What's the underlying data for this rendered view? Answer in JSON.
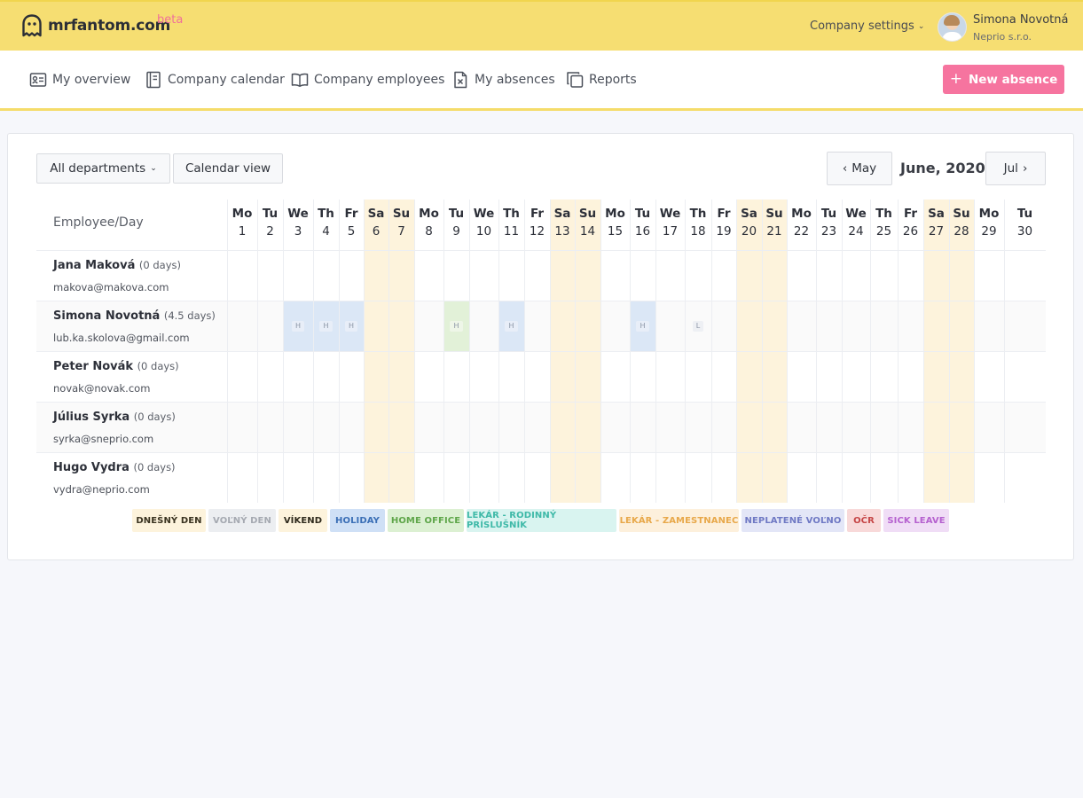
{
  "header": {
    "logo_text": "mrfantom.com",
    "beta_label": "beta",
    "company_settings_label": "Company settings",
    "user_name": "Simona Novotná",
    "user_company": "Neprio s.r.o."
  },
  "nav": {
    "items": [
      {
        "label": "My overview",
        "icon": "id-card-icon"
      },
      {
        "label": "Company calendar",
        "icon": "calendar-book-icon"
      },
      {
        "label": "Company employees",
        "icon": "open-book-icon"
      },
      {
        "label": "My absences",
        "icon": "document-x-icon"
      },
      {
        "label": "Reports",
        "icon": "copy-icon"
      }
    ],
    "new_absence_label": "New absence"
  },
  "toolbar": {
    "department_filter": "All departments",
    "view_button": "Calendar view",
    "prev_month": "May",
    "current_month": "June, 2020",
    "next_month": "Jul"
  },
  "calendar": {
    "header_label": "Employee/Day",
    "days": [
      {
        "n": "Mo",
        "d": "1"
      },
      {
        "n": "Tu",
        "d": "2"
      },
      {
        "n": "We",
        "d": "3"
      },
      {
        "n": "Th",
        "d": "4"
      },
      {
        "n": "Fr",
        "d": "5"
      },
      {
        "n": "Sa",
        "d": "6"
      },
      {
        "n": "Su",
        "d": "7"
      },
      {
        "n": "Mo",
        "d": "8"
      },
      {
        "n": "Tu",
        "d": "9"
      },
      {
        "n": "We",
        "d": "10"
      },
      {
        "n": "Th",
        "d": "11"
      },
      {
        "n": "Fr",
        "d": "12"
      },
      {
        "n": "Sa",
        "d": "13"
      },
      {
        "n": "Su",
        "d": "14"
      },
      {
        "n": "Mo",
        "d": "15"
      },
      {
        "n": "Tu",
        "d": "16"
      },
      {
        "n": "We",
        "d": "17"
      },
      {
        "n": "Th",
        "d": "18"
      },
      {
        "n": "Fr",
        "d": "19"
      },
      {
        "n": "Sa",
        "d": "20"
      },
      {
        "n": "Su",
        "d": "21"
      },
      {
        "n": "Mo",
        "d": "22"
      },
      {
        "n": "Tu",
        "d": "23"
      },
      {
        "n": "We",
        "d": "24"
      },
      {
        "n": "Th",
        "d": "25"
      },
      {
        "n": "Fr",
        "d": "26"
      },
      {
        "n": "Sa",
        "d": "27"
      },
      {
        "n": "Su",
        "d": "28"
      },
      {
        "n": "Mo",
        "d": "29"
      },
      {
        "n": "Tu",
        "d": "30"
      }
    ],
    "employees": [
      {
        "name": "Jana Maková",
        "days": "(0 days)",
        "email": "makova@makova.com",
        "absences": []
      },
      {
        "name": "Simona Novotná",
        "days": "(4.5 days)",
        "email": "lub.ka.skolova@gmail.com",
        "absences": [
          {
            "day": 3,
            "type": "holiday",
            "tag": "H"
          },
          {
            "day": 4,
            "type": "holiday",
            "tag": "H"
          },
          {
            "day": 5,
            "type": "holiday",
            "tag": "H"
          },
          {
            "day": 9,
            "type": "home-office",
            "tag": "H"
          },
          {
            "day": 11,
            "type": "holiday",
            "tag": "H"
          },
          {
            "day": 16,
            "type": "holiday",
            "tag": "H"
          },
          {
            "day": 18,
            "type": "none",
            "tag": "L"
          }
        ]
      },
      {
        "name": "Peter Novák",
        "days": "(0 days)",
        "email": "novak@novak.com",
        "absences": []
      },
      {
        "name": "Július Syrka",
        "days": "(0 days)",
        "email": "syrka@sneprio.com",
        "absences": []
      },
      {
        "name": "Hugo Vydra",
        "days": "(0 days)",
        "email": "vydra@neprio.com",
        "absences": []
      }
    ]
  },
  "legend": [
    {
      "label": "DNEŠNÝ DEN",
      "bg": "#fdf3dc",
      "fg": "#3a3320"
    },
    {
      "label": "VOĽNÝ DEN",
      "bg": "#eceef1",
      "fg": "#a5a9b1"
    },
    {
      "label": "VÍKEND",
      "bg": "#fdf3dc",
      "fg": "#2f2a1c"
    },
    {
      "label": "HOLIDAY",
      "bg": "#cfe0f6",
      "fg": "#3b6fb6"
    },
    {
      "label": "HOME OFFICE",
      "bg": "#dcf0d2",
      "fg": "#5fa64a"
    },
    {
      "label": "LEKÁR - RODINNÝ PRÍSLUŠNÍK",
      "bg": "#d9f4f0",
      "fg": "#3fb9a8"
    },
    {
      "label": "LEKÁR - ZAMESTNANEC",
      "bg": "#fdf0dc",
      "fg": "#e8a84a"
    },
    {
      "label": "NEPLATENÉ VOĽNO",
      "bg": "#e3e6f7",
      "fg": "#6f79c4"
    },
    {
      "label": "OČR",
      "bg": "#f8d9d9",
      "fg": "#c54545"
    },
    {
      "label": "SICK LEAVE",
      "bg": "#f0ddf6",
      "fg": "#b561cf"
    }
  ]
}
